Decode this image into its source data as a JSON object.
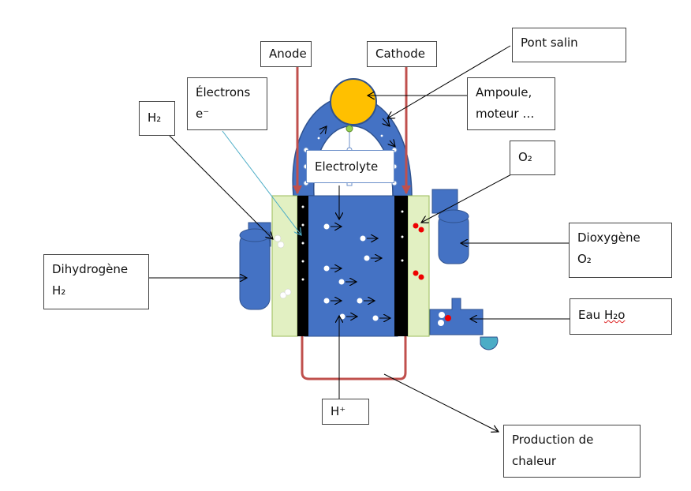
{
  "labels": {
    "anode": "Anode",
    "cathode": "Cathode",
    "pont_salin": "Pont salin",
    "ampoule_line1": "Ampoule,",
    "ampoule_line2": "moteur …",
    "electrons_line1": "Électrons",
    "electrons_line2": "e⁻",
    "h2": "H₂",
    "electrolyte": "Electrolyte",
    "o2": "O₂",
    "dioxygene_line1": "Dioxygène",
    "dioxygene_line2": "O₂",
    "dihydrogene_line1": "Dihydrogène",
    "dihydrogene_line2": "H₂",
    "eau_prefix": "Eau ",
    "eau_formula": "H₂o",
    "h_plus": "H⁺",
    "production_line1": "Production de",
    "production_line2": "chaleur"
  },
  "colors": {
    "cell_blue": "#4472c4",
    "cell_outline": "#2f528f",
    "electrode_black": "#000000",
    "membrane_green": "#e2f0c2",
    "wire_red": "#c0504d",
    "bulb_orange": "#ffc000",
    "oxygen_red": "#ee0000",
    "hydrogen_white": "#ffffff",
    "electron_line": "#4bacc6"
  }
}
